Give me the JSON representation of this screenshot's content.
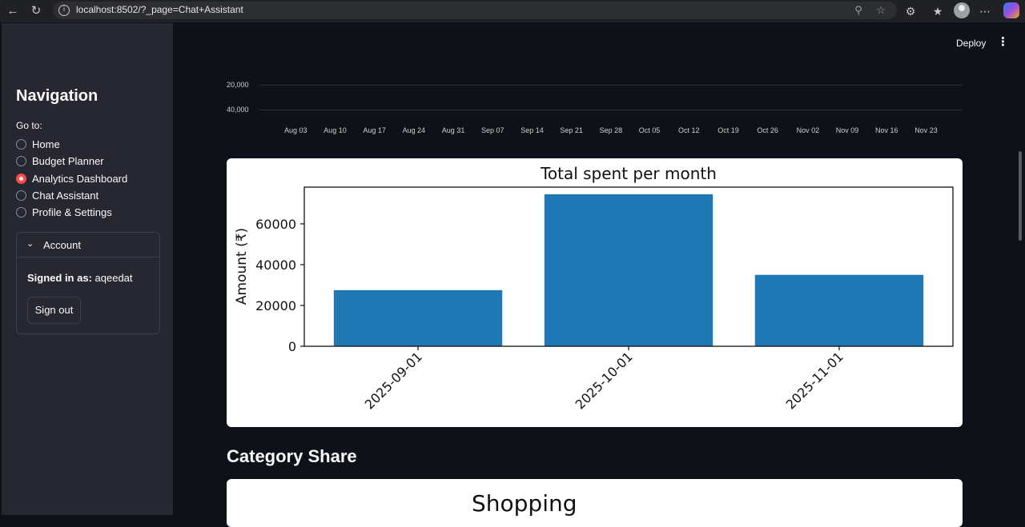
{
  "browser": {
    "url": "localhost:8502/?_page=Chat+Assistant"
  },
  "sidebar": {
    "title": "Navigation",
    "goto_label": "Go to:",
    "items": [
      {
        "label": "Home",
        "selected": false
      },
      {
        "label": "Budget Planner",
        "selected": false
      },
      {
        "label": "Analytics Dashboard",
        "selected": true
      },
      {
        "label": "Chat Assistant",
        "selected": false
      },
      {
        "label": "Profile & Settings",
        "selected": false
      }
    ],
    "account": {
      "title": "Account",
      "signed_in_label": "Signed in as:",
      "username": "aqeedat",
      "sign_out_label": "Sign out"
    }
  },
  "header": {
    "deploy_label": "Deploy"
  },
  "altair_remnant": {
    "y_ticks": [
      "20,000",
      "40,000"
    ],
    "x_ticks": [
      "Aug 03",
      "Aug 10",
      "Aug 17",
      "Aug 24",
      "Aug 31",
      "Sep 07",
      "Sep 14",
      "Sep 21",
      "Sep 28",
      "Oct 05",
      "Oct 12",
      "Oct 19",
      "Oct 26",
      "Nov 02",
      "Nov 09",
      "Nov 16",
      "Nov 23"
    ]
  },
  "chart_data": {
    "type": "bar",
    "title": "Total spent per month",
    "xlabel": "",
    "ylabel": "Amount (₹)",
    "categories": [
      "2025-09-01",
      "2025-10-01",
      "2025-11-01"
    ],
    "values": [
      27500,
      74500,
      35000
    ],
    "ylim": [
      0,
      78000
    ],
    "y_ticks": [
      0,
      20000,
      40000,
      60000
    ],
    "grid": false,
    "bar_color": "#1f77b4"
  },
  "category_share": {
    "heading": "Category Share",
    "pie_title": "Shopping"
  },
  "colors": {
    "accent": "#ff4b4b",
    "sidebar_bg": "#262730",
    "main_bg": "#0e1117"
  }
}
